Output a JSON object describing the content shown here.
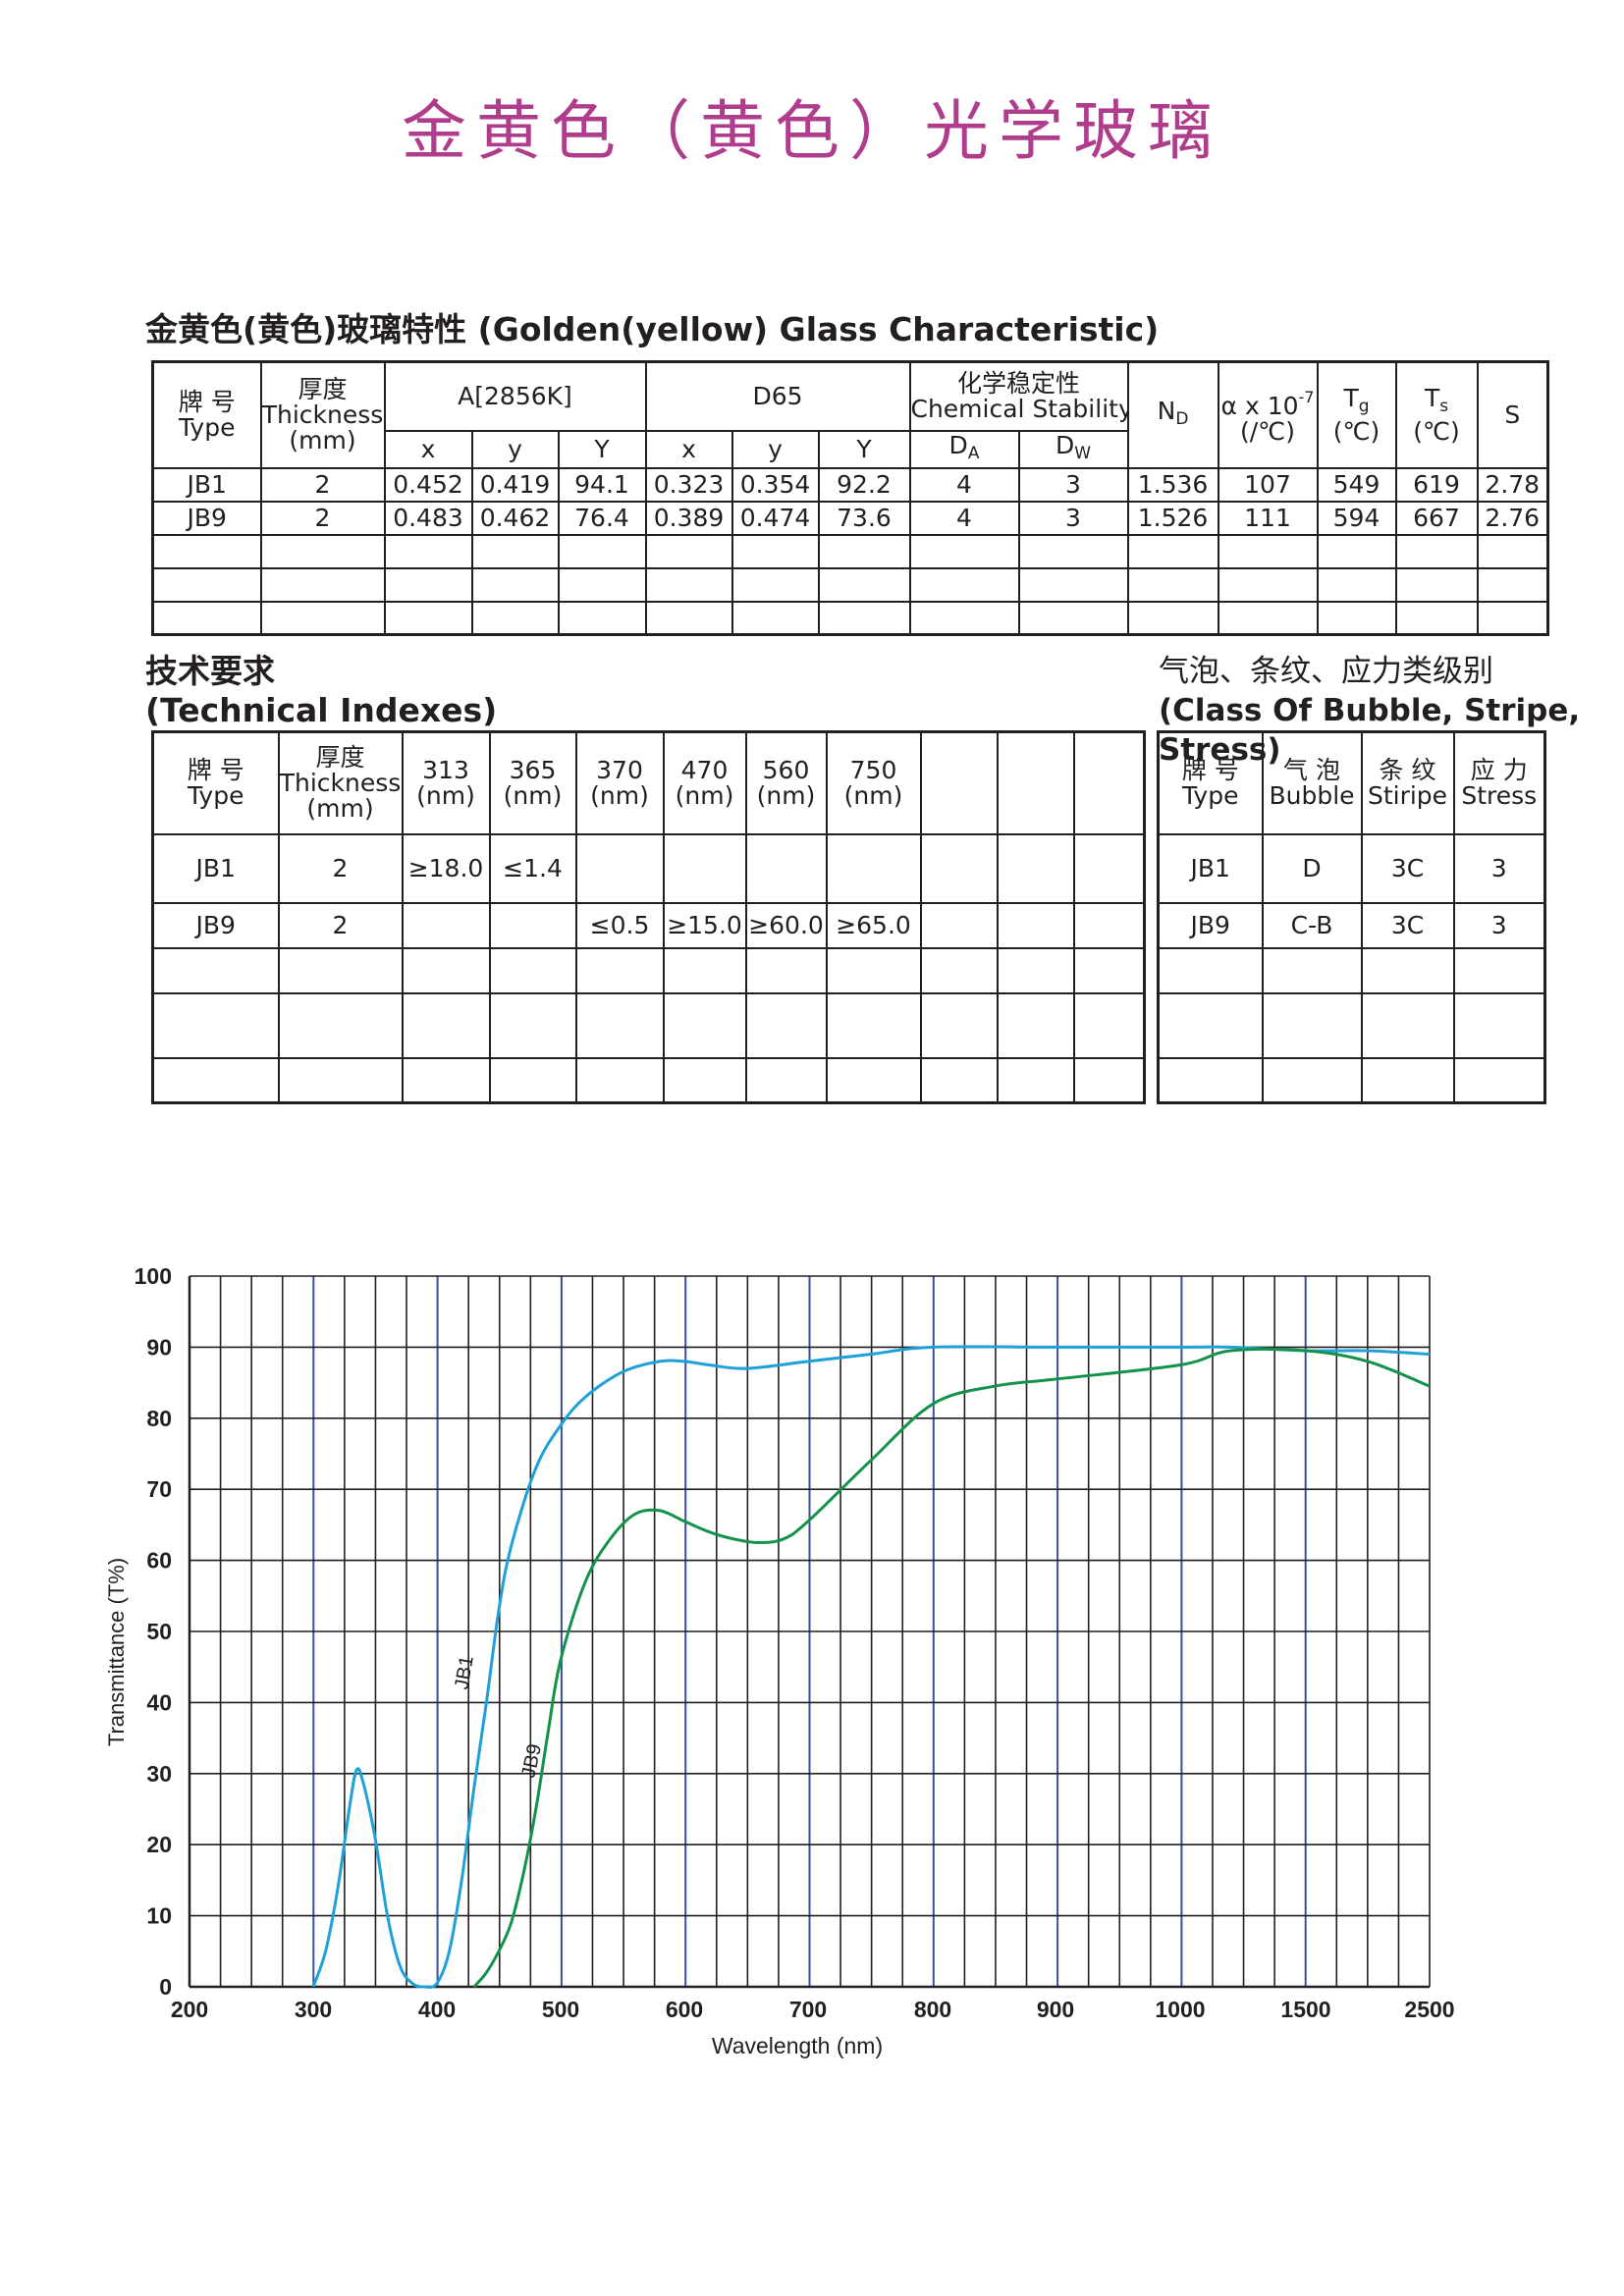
{
  "title": "金黄色（黄色）光学玻璃",
  "characteristics": {
    "heading": "金黄色(黄色)玻璃特性 (Golden(yellow) Glass Characteristic)",
    "header": {
      "type_cn": "牌 号",
      "type_en": "Type",
      "thickness_cn": "厚度",
      "thickness_en": "Thickness",
      "thickness_unit": "(mm)",
      "group_a": "A[2856K]",
      "group_d65": "D65",
      "chem_cn": "化学稳定性",
      "chem_en": "Chemical Stability",
      "nd_main": "N",
      "nd_sub": "D",
      "alpha_main": "α x 10",
      "alpha_sup": "-7",
      "alpha_unit": "(/℃)",
      "tg_main": "T",
      "tg_sub": "g",
      "tg_unit": "(℃)",
      "ts_main": "T",
      "ts_sub": "s",
      "ts_unit": "(℃)",
      "s": "S",
      "x": "x",
      "y": "y",
      "Y": "Y",
      "da_main": "D",
      "da_sub": "A",
      "dw_main": "D",
      "dw_sub": "W"
    },
    "rows": [
      [
        "JB1",
        "2",
        "0.452",
        "0.419",
        "94.1",
        "0.323",
        "0.354",
        "92.2",
        "4",
        "3",
        "1.536",
        "107",
        "549",
        "619",
        "2.78"
      ],
      [
        "JB9",
        "2",
        "0.483",
        "0.462",
        "76.4",
        "0.389",
        "0.474",
        "73.6",
        "4",
        "3",
        "1.526",
        "111",
        "594",
        "667",
        "2.76"
      ]
    ]
  },
  "technical": {
    "heading_cn": "技术要求",
    "heading_en": "(Technical Indexes)",
    "header": {
      "type_cn": "牌 号",
      "type_en": "Type",
      "thickness_cn": "厚度",
      "thickness_en": "Thickness",
      "thickness_unit": "(mm)",
      "wavelengths": [
        "313",
        "365",
        "370",
        "470",
        "560",
        "750"
      ],
      "unit": "(nm)"
    },
    "rows": [
      [
        "JB1",
        "2",
        "≥18.0",
        "≤1.4",
        "",
        "",
        "",
        ""
      ],
      [
        "JB9",
        "2",
        "",
        "",
        "≤0.5",
        "≥15.0",
        "≥60.0",
        "≥65.0"
      ]
    ]
  },
  "bubble": {
    "heading_cn": "气泡、条纹、应力类级别",
    "heading_en": "(Class Of Bubble, Stripe, Stress)",
    "header": {
      "type_cn": "牌 号",
      "type_en": "Type",
      "bubble_cn": "气 泡",
      "bubble_en": "Bubble",
      "stripe_cn": "条 纹",
      "stripe_en": "Stiripe",
      "stress_cn": "应 力",
      "stress_en": "Stress"
    },
    "rows": [
      [
        "JB1",
        "D",
        "3C",
        "3"
      ],
      [
        "JB9",
        "C-B",
        "3C",
        "3"
      ]
    ]
  },
  "chart_data": {
    "type": "line",
    "xlabel": "Wavelength (nm)",
    "ylabel": "Transmittance (T%)",
    "ylim": [
      0,
      100
    ],
    "y_ticks": [
      "0",
      "10",
      "20",
      "30",
      "40",
      "50",
      "60",
      "70",
      "80",
      "90",
      "100"
    ],
    "x_ticks": [
      "200",
      "300",
      "400",
      "500",
      "600",
      "700",
      "800",
      "900",
      "1000",
      "1500",
      "2500"
    ],
    "x_scale": "piecewise (200-1000 linear, 1000-1500, 1500-2500 compressed)",
    "grid": true,
    "colors": {
      "JB1": "#1fa0d8",
      "JB9": "#13934a",
      "grid": "#231f20",
      "accent_grid": "#3a4fa0"
    },
    "series": [
      {
        "name": "JB1",
        "x": [
          300,
          310,
          320,
          330,
          335,
          340,
          350,
          360,
          370,
          380,
          390,
          400,
          410,
          420,
          430,
          440,
          450,
          460,
          480,
          500,
          520,
          550,
          580,
          600,
          620,
          650,
          700,
          750,
          800,
          900,
          1000,
          1200,
          1500,
          2000,
          2500
        ],
        "y": [
          0,
          5,
          14,
          26,
          30.5,
          29,
          21,
          10,
          3,
          0.5,
          0,
          0.5,
          5,
          15,
          28,
          40,
          53,
          62,
          73,
          79,
          83,
          86.5,
          88,
          88,
          87.5,
          87,
          88,
          89,
          90,
          90,
          90,
          90,
          89.5,
          89.5,
          89
        ]
      },
      {
        "name": "JB9",
        "x": [
          430,
          440,
          450,
          460,
          470,
          480,
          490,
          500,
          520,
          540,
          560,
          580,
          600,
          620,
          640,
          660,
          680,
          700,
          750,
          800,
          850,
          900,
          1000,
          1200,
          1500,
          2000,
          2500
        ],
        "y": [
          0,
          2,
          5,
          9,
          16,
          25,
          36,
          46,
          57,
          63,
          66.5,
          67,
          65.5,
          64,
          63,
          62.5,
          63,
          65.5,
          74,
          82,
          84.5,
          85.5,
          87.5,
          89.5,
          89.5,
          88,
          84.5
        ]
      }
    ],
    "annotations": [
      "JB1",
      "JB9"
    ]
  }
}
